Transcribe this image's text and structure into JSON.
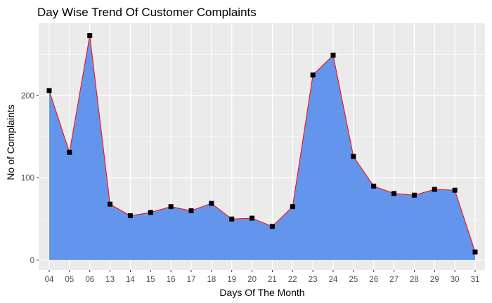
{
  "chart_data": {
    "type": "area",
    "title": "Day Wise Trend Of Customer Complaints",
    "xlabel": "Days Of The Month",
    "ylabel": "No of Complaints",
    "categories": [
      "04",
      "05",
      "06",
      "13",
      "14",
      "15",
      "16",
      "17",
      "18",
      "19",
      "20",
      "21",
      "22",
      "23",
      "24",
      "25",
      "26",
      "27",
      "28",
      "29",
      "30",
      "31"
    ],
    "values": [
      206,
      131,
      273,
      68,
      54,
      58,
      65,
      60,
      69,
      50,
      51,
      41,
      65,
      225,
      249,
      126,
      90,
      81,
      79,
      86,
      85,
      10
    ],
    "yticks": [
      0,
      100,
      200
    ],
    "ylim": [
      -12,
      288
    ],
    "grid": true,
    "legend": "none",
    "colors": {
      "panel_background": "#EBEBEB",
      "grid": "#FFFFFF",
      "area_fill": "#6495ED",
      "line": "#FF0000",
      "point": "#000000",
      "tick_text": "#4D4D4D",
      "axis_tick": "#333333"
    }
  }
}
